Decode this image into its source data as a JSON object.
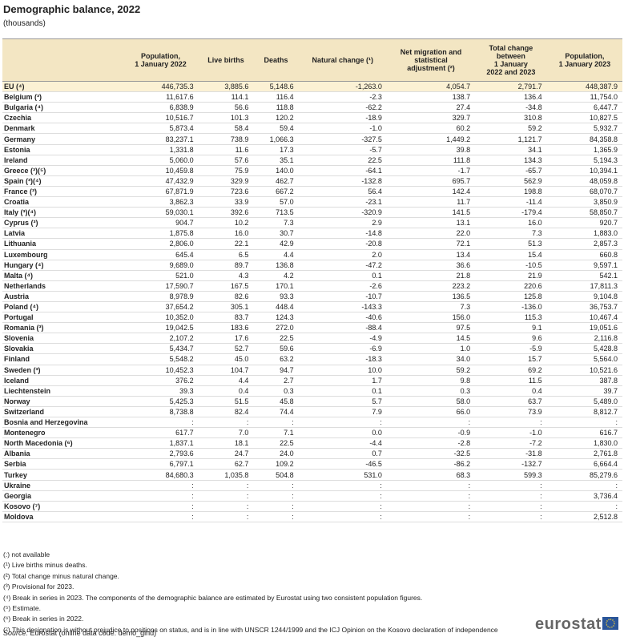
{
  "title": "Demographic balance, 2022",
  "subtitle": "(thousands)",
  "table": {
    "header": [
      "",
      "Population,\n1 January 2022",
      "Live births",
      "Deaths",
      "Natural change (¹)",
      "Net migration and\nstatistical\nadjustment (²)",
      "Total change\nbetween\n1 January\n2022 and 2023",
      "Population,\n1 January 2023"
    ],
    "groups": [
      [
        [
          "EU (⁴)",
          "446,735.3",
          "3,885.6",
          "5,148.6",
          "-1,263.0",
          "4,054.7",
          "2,791.7",
          "448,387.9"
        ]
      ],
      [
        [
          "Belgium (³)",
          "11,617.6",
          "114.1",
          "116.4",
          "-2.3",
          "138.7",
          "136.4",
          "11,754.0"
        ],
        [
          "Bulgaria (⁴)",
          "6,838.9",
          "56.6",
          "118.8",
          "-62.2",
          "27.4",
          "-34.8",
          "6,447.7"
        ],
        [
          "Czechia",
          "10,516.7",
          "101.3",
          "120.2",
          "-18.9",
          "329.7",
          "310.8",
          "10,827.5"
        ],
        [
          "Denmark",
          "5,873.4",
          "58.4",
          "59.4",
          "-1.0",
          "60.2",
          "59.2",
          "5,932.7"
        ],
        [
          "Germany",
          "83,237.1",
          "738.9",
          "1,066.3",
          "-327.5",
          "1,449.2",
          "1,121.7",
          "84,358.8"
        ],
        [
          "Estonia",
          "1,331.8",
          "11.6",
          "17.3",
          "-5.7",
          "39.8",
          "34.1",
          "1,365.9"
        ],
        [
          "Ireland",
          "5,060.0",
          "57.6",
          "35.1",
          "22.5",
          "111.8",
          "134.3",
          "5,194.3"
        ],
        [
          "Greece (³)(⁵)",
          "10,459.8",
          "75.9",
          "140.0",
          "-64.1",
          "-1.7",
          "-65.7",
          "10,394.1"
        ],
        [
          "Spain (³)(⁴)",
          "47,432.9",
          "329.9",
          "462.7",
          "-132.8",
          "695.7",
          "562.9",
          "48,059.8"
        ],
        [
          "France (³)",
          "67,871.9",
          "723.6",
          "667.2",
          "56.4",
          "142.4",
          "198.8",
          "68,070.7"
        ],
        [
          "Croatia",
          "3,862.3",
          "33.9",
          "57.0",
          "-23.1",
          "11.7",
          "-11.4",
          "3,850.9"
        ],
        [
          "Italy (³)(⁴)",
          "59,030.1",
          "392.6",
          "713.5",
          "-320.9",
          "141.5",
          "-179.4",
          "58,850.7"
        ],
        [
          "Cyprus (³)",
          "904.7",
          "10.2",
          "7.3",
          "2.9",
          "13.1",
          "16.0",
          "920.7"
        ],
        [
          "Latvia",
          "1,875.8",
          "16.0",
          "30.7",
          "-14.8",
          "22.0",
          "7.3",
          "1,883.0"
        ],
        [
          "Lithuania",
          "2,806.0",
          "22.1",
          "42.9",
          "-20.8",
          "72.1",
          "51.3",
          "2,857.3"
        ],
        [
          "Luxembourg",
          "645.4",
          "6.5",
          "4.4",
          "2.0",
          "13.4",
          "15.4",
          "660.8"
        ],
        [
          "Hungary (⁴)",
          "9,689.0",
          "89.7",
          "136.8",
          "-47.2",
          "36.6",
          "-10.5",
          "9,597.1"
        ],
        [
          "Malta (⁴)",
          "521.0",
          "4.3",
          "4.2",
          "0.1",
          "21.8",
          "21.9",
          "542.1"
        ],
        [
          "Netherlands",
          "17,590.7",
          "167.5",
          "170.1",
          "-2.6",
          "223.2",
          "220.6",
          "17,811.3"
        ],
        [
          "Austria",
          "8,978.9",
          "82.6",
          "93.3",
          "-10.7",
          "136.5",
          "125.8",
          "9,104.8"
        ],
        [
          "Poland (⁴)",
          "37,654.2",
          "305.1",
          "448.4",
          "-143.3",
          "7.3",
          "-136.0",
          "36,753.7"
        ],
        [
          "Portugal",
          "10,352.0",
          "83.7",
          "124.3",
          "-40.6",
          "156.0",
          "115.3",
          "10,467.4"
        ],
        [
          "Romania (³)",
          "19,042.5",
          "183.6",
          "272.0",
          "-88.4",
          "97.5",
          "9.1",
          "19,051.6"
        ],
        [
          "Slovenia",
          "2,107.2",
          "17.6",
          "22.5",
          "-4.9",
          "14.5",
          "9.6",
          "2,116.8"
        ],
        [
          "Slovakia",
          "5,434.7",
          "52.7",
          "59.6",
          "-6.9",
          "1.0",
          "-5.9",
          "5,428.8"
        ],
        [
          "Finland",
          "5,548.2",
          "45.0",
          "63.2",
          "-18.3",
          "34.0",
          "15.7",
          "5,564.0"
        ],
        [
          "Sweden (³)",
          "10,452.3",
          "104.7",
          "94.7",
          "10.0",
          "59.2",
          "69.2",
          "10,521.6"
        ]
      ],
      [
        [
          "Iceland",
          "376.2",
          "4.4",
          "2.7",
          "1.7",
          "9.8",
          "11.5",
          "387.8"
        ],
        [
          "Liechtenstein",
          "39.3",
          "0.4",
          "0.3",
          "0.1",
          "0.3",
          "0.4",
          "39.7"
        ],
        [
          "Norway",
          "5,425.3",
          "51.5",
          "45.8",
          "5.7",
          "58.0",
          "63.7",
          "5,489.0"
        ],
        [
          "Switzerland",
          "8,738.8",
          "82.4",
          "74.4",
          "7.9",
          "66.0",
          "73.9",
          "8,812.7"
        ]
      ],
      [
        [
          "Bosnia and Herzegovina",
          ":",
          ":",
          ":",
          ":",
          ":",
          ":",
          ":"
        ],
        [
          "Montenegro",
          "617.7",
          "7.0",
          "7.1",
          "0.0",
          "-0.9",
          "-1.0",
          "616.7"
        ],
        [
          "North Macedonia (⁶)",
          "1,837.1",
          "18.1",
          "22.5",
          "-4.4",
          "-2.8",
          "-7.2",
          "1,830.0"
        ],
        [
          "Albania",
          "2,793.6",
          "24.7",
          "24.0",
          "0.7",
          "-32.5",
          "-31.8",
          "2,761.8"
        ],
        [
          "Serbia",
          "6,797.1",
          "62.7",
          "109.2",
          "-46.5",
          "-86.2",
          "-132.7",
          "6,664.4"
        ],
        [
          "Turkey",
          "84,680.3",
          "1,035.8",
          "504.8",
          "531.0",
          "68.3",
          "599.3",
          "85,279.6"
        ],
        [
          "Ukraine",
          ":",
          ":",
          ":",
          ":",
          ":",
          ":",
          ":"
        ],
        [
          "Georgia",
          ":",
          ":",
          ":",
          ":",
          ":",
          ":",
          "3,736.4"
        ]
      ],
      [
        [
          "Kosovo (⁷)",
          ":",
          ":",
          ":",
          ":",
          ":",
          ":",
          ":"
        ],
        [
          "Moldova",
          ":",
          ":",
          ":",
          ":",
          ":",
          ":",
          "2,512.8"
        ]
      ]
    ]
  },
  "notes": [
    "(:) not available",
    "(¹) Live births minus deaths.",
    "(²) Total change minus natural change.",
    "(³) Provisional for 2023.",
    "(⁴) Break in series in 2023. The components of the demographic balance are estimated by Eurostat using two consistent population figures.",
    "(⁵) Estimate.",
    "(⁶) Break in series in 2022.",
    "(⁷) This designation is without prejudice to positions on status, and is in line with UNSCR 1244/1999 and the ICJ Opinion on the Kosovo declaration of independence"
  ],
  "source_label": "Source:",
  "source": "Eurostat (online data code: demo_gind)",
  "logo": "eurostat"
}
